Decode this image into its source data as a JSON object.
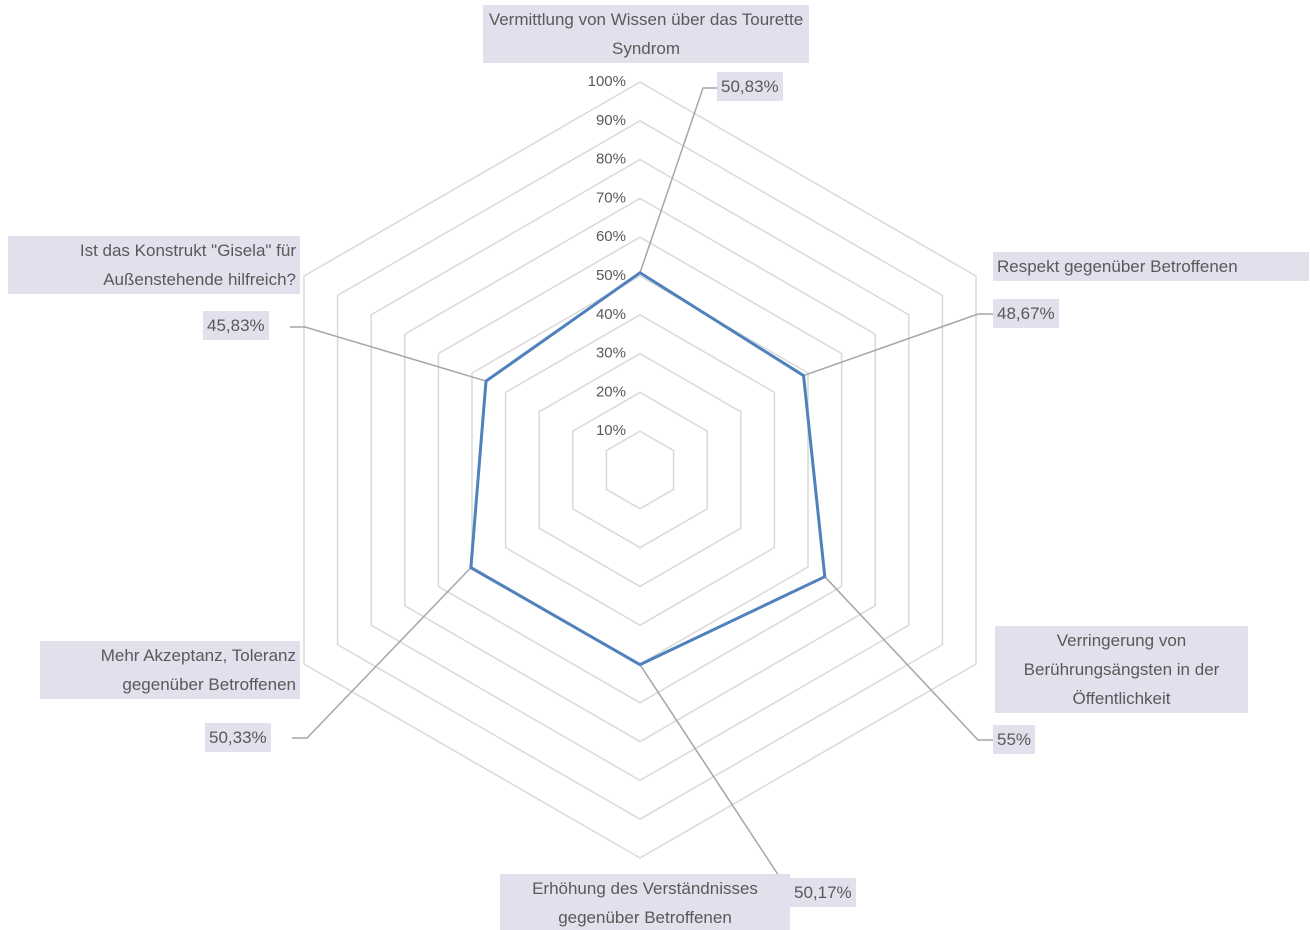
{
  "chart_data": {
    "type": "radar",
    "categories": [
      "Vermittlung von Wissen über das Tourette Syndrom",
      "Respekt gegenüber Betroffenen",
      "Verringerung von Berührungsängsten in der Öffentlichkeit",
      "Erhöhung des Verständnisses gegenüber Betroffenen",
      "Mehr Akzeptanz, Toleranz gegenüber Betroffenen",
      "Ist das Konstrukt \"Gisela\" für Außenstehende hilfreich?"
    ],
    "values": [
      50.83,
      48.67,
      55,
      50.17,
      50.33,
      45.83
    ],
    "value_labels": [
      "50,83%",
      "48,67%",
      "55%",
      "50,17%",
      "50,33%",
      "45,83%"
    ],
    "color": "#4f81bd",
    "ylim": [
      0,
      100
    ],
    "yticks": [
      {
        "value": 10,
        "label": "10%"
      },
      {
        "value": 20,
        "label": "20%"
      },
      {
        "value": 30,
        "label": "30%"
      },
      {
        "value": 40,
        "label": "40%"
      },
      {
        "value": 50,
        "label": "50%"
      },
      {
        "value": 60,
        "label": "60%"
      },
      {
        "value": 70,
        "label": "70%"
      },
      {
        "value": 80,
        "label": "80%"
      },
      {
        "value": 90,
        "label": "90%"
      },
      {
        "value": 100,
        "label": "100%"
      }
    ],
    "grid": true
  }
}
